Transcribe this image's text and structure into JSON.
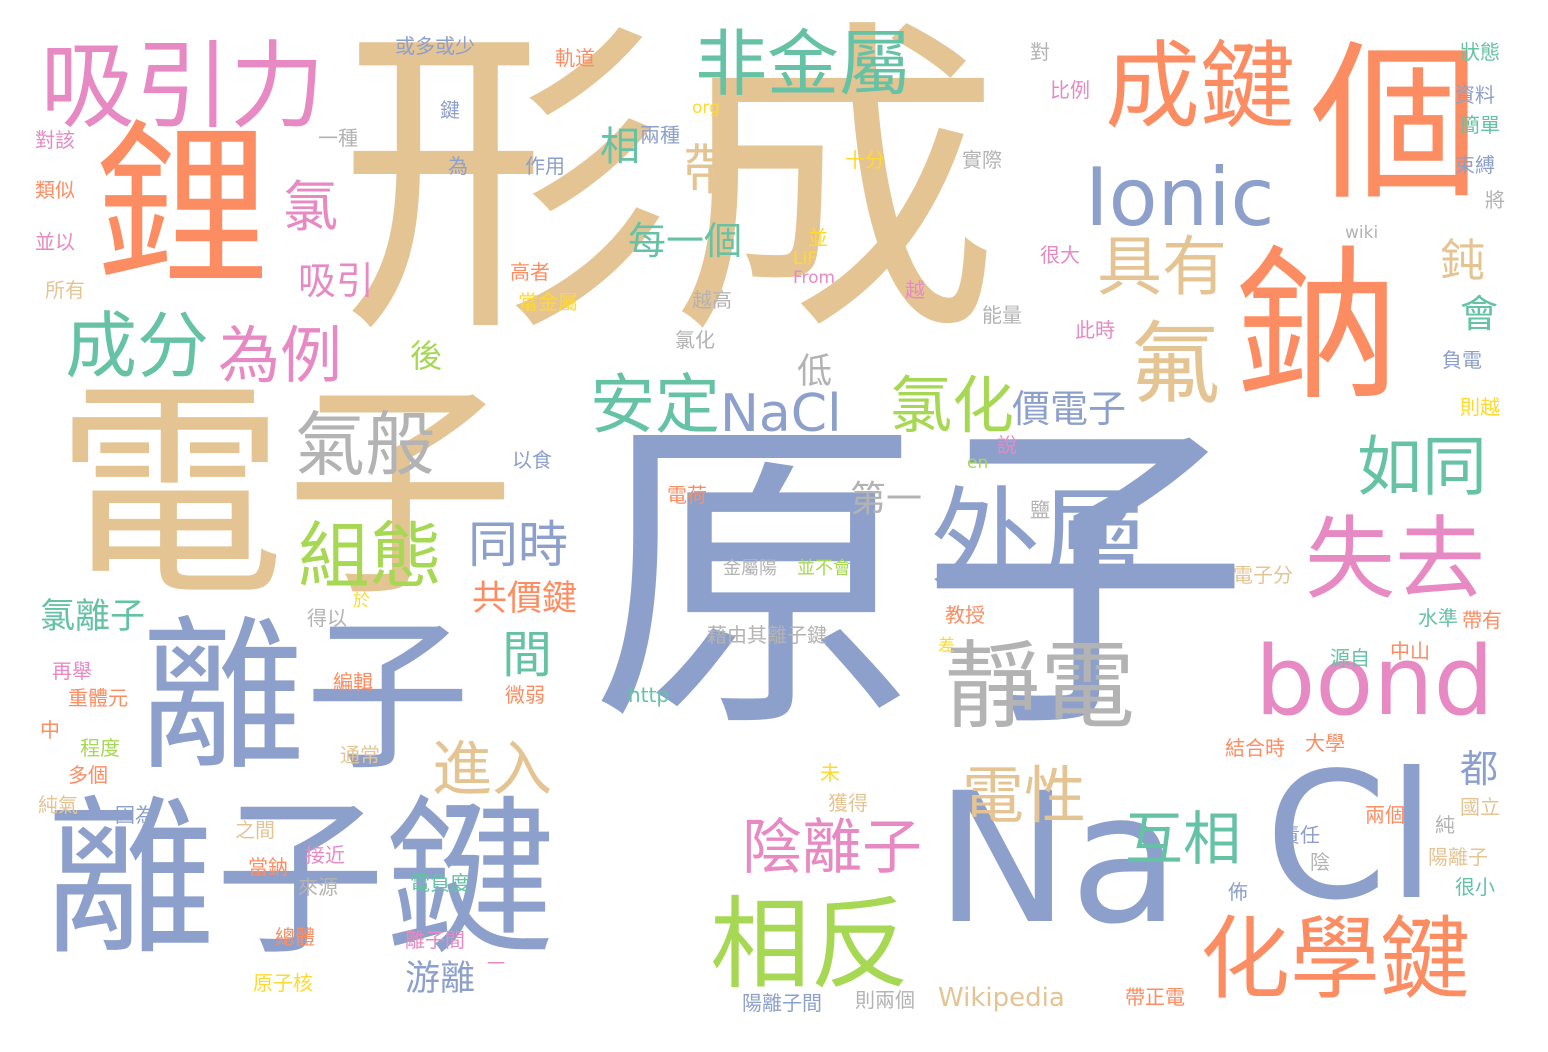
{
  "palette": {
    "green": "#66c2a5",
    "orange": "#fc8d62",
    "blue": "#8da0cb",
    "pink": "#e78ac3",
    "lime": "#a6d854",
    "yellow": "#ffd92f",
    "tan": "#e5c494",
    "gray": "#b3b3b3"
  },
  "words": [
    {
      "text": "原子",
      "color": "blue"
    },
    {
      "text": "形成",
      "color": "tan"
    },
    {
      "text": "電子",
      "color": "tan"
    },
    {
      "text": "離子鍵",
      "color": "blue"
    },
    {
      "text": "Na",
      "color": "blue"
    },
    {
      "text": "Cl",
      "color": "blue"
    },
    {
      "text": "離子",
      "color": "blue"
    },
    {
      "text": "鋰",
      "color": "orange"
    },
    {
      "text": "鈉",
      "color": "orange"
    },
    {
      "text": "個",
      "color": "orange"
    },
    {
      "text": "成鍵",
      "color": "orange"
    },
    {
      "text": "外層",
      "color": "blue"
    },
    {
      "text": "Ionic",
      "color": "blue"
    },
    {
      "text": "bond",
      "color": "pink"
    },
    {
      "text": "化學鍵",
      "color": "orange"
    },
    {
      "text": "失去",
      "color": "pink"
    },
    {
      "text": "相反",
      "color": "lime"
    },
    {
      "text": "靜電",
      "color": "gray"
    },
    {
      "text": "吸引力",
      "color": "pink"
    },
    {
      "text": "非金屬",
      "color": "green"
    },
    {
      "text": "氟",
      "color": "tan"
    },
    {
      "text": "NaCl",
      "color": "blue"
    },
    {
      "text": "安定",
      "color": "green"
    },
    {
      "text": "氯化",
      "color": "lime"
    },
    {
      "text": "成分",
      "color": "green"
    },
    {
      "text": "為例",
      "color": "pink"
    },
    {
      "text": "氣般",
      "color": "gray"
    },
    {
      "text": "組態",
      "color": "lime"
    },
    {
      "text": "具有",
      "color": "tan"
    },
    {
      "text": "帶",
      "color": "tan"
    },
    {
      "text": "氯",
      "color": "pink"
    },
    {
      "text": "陰離子",
      "color": "pink"
    },
    {
      "text": "互相",
      "color": "green"
    },
    {
      "text": "電性",
      "color": "tan"
    },
    {
      "text": "如同",
      "color": "green"
    },
    {
      "text": "同時",
      "color": "blue"
    },
    {
      "text": "進入",
      "color": "tan"
    },
    {
      "text": "間",
      "color": "green"
    },
    {
      "text": "每一個",
      "color": "green"
    },
    {
      "text": "鈍",
      "color": "tan"
    },
    {
      "text": "吸引",
      "color": "pink"
    },
    {
      "text": "相",
      "color": "green"
    },
    {
      "text": "價電子",
      "color": "blue"
    },
    {
      "text": "共價鍵",
      "color": "orange"
    },
    {
      "text": "氯離子",
      "color": "green"
    },
    {
      "text": "第一",
      "color": "gray"
    },
    {
      "text": "游離",
      "color": "blue"
    },
    {
      "text": "Wikipedia",
      "color": "tan"
    },
    {
      "text": "會",
      "color": "green"
    },
    {
      "text": "都",
      "color": "blue"
    },
    {
      "text": "低",
      "color": "gray"
    },
    {
      "text": "後",
      "color": "lime"
    },
    {
      "text": "或多或少",
      "color": "blue"
    },
    {
      "text": "軌道",
      "color": "orange"
    },
    {
      "text": "鍵",
      "color": "blue"
    },
    {
      "text": "一種",
      "color": "gray"
    },
    {
      "text": "為",
      "color": "blue"
    },
    {
      "text": "作用",
      "color": "blue"
    },
    {
      "text": "兩種",
      "color": "blue"
    },
    {
      "text": "org",
      "color": "yellow"
    },
    {
      "text": "比例",
      "color": "pink"
    },
    {
      "text": "對",
      "color": "gray"
    },
    {
      "text": "十分",
      "color": "yellow"
    },
    {
      "text": "實際",
      "color": "gray"
    },
    {
      "text": "wiki",
      "color": "gray"
    },
    {
      "text": "並",
      "color": "yellow"
    },
    {
      "text": "LiF",
      "color": "yellow"
    },
    {
      "text": "From",
      "color": "pink"
    },
    {
      "text": "高者",
      "color": "orange"
    },
    {
      "text": "當金屬",
      "color": "yellow"
    },
    {
      "text": "越高",
      "color": "gray"
    },
    {
      "text": "越",
      "color": "pink"
    },
    {
      "text": "很大",
      "color": "pink"
    },
    {
      "text": "能量",
      "color": "gray"
    },
    {
      "text": "此時",
      "color": "pink"
    },
    {
      "text": "氯化",
      "color": "gray"
    },
    {
      "text": "以食",
      "color": "blue"
    },
    {
      "text": "說",
      "color": "pink"
    },
    {
      "text": "en",
      "color": "lime"
    },
    {
      "text": "鹽",
      "color": "gray"
    },
    {
      "text": "電荷",
      "color": "orange"
    },
    {
      "text": "金屬陽",
      "color": "gray"
    },
    {
      "text": "並不會",
      "color": "lime"
    },
    {
      "text": "藉由其離子鍵",
      "color": "gray"
    },
    {
      "text": "電子分",
      "color": "tan"
    },
    {
      "text": "教授",
      "color": "orange"
    },
    {
      "text": "差",
      "color": "yellow"
    },
    {
      "text": "於",
      "color": "yellow"
    },
    {
      "text": "得以",
      "color": "gray"
    },
    {
      "text": "狀態",
      "color": "green"
    },
    {
      "text": "資料",
      "color": "blue"
    },
    {
      "text": "簡單",
      "color": "green"
    },
    {
      "text": "束縛",
      "color": "blue"
    },
    {
      "text": "將",
      "color": "gray"
    },
    {
      "text": "負電",
      "color": "blue"
    },
    {
      "text": "則越",
      "color": "yellow"
    },
    {
      "text": "帶有",
      "color": "orange"
    },
    {
      "text": "水準",
      "color": "green"
    },
    {
      "text": "中山",
      "color": "orange"
    },
    {
      "text": "源自",
      "color": "green"
    },
    {
      "text": "大學",
      "color": "orange"
    },
    {
      "text": "結合時",
      "color": "orange"
    },
    {
      "text": "國立",
      "color": "tan"
    },
    {
      "text": "兩個",
      "color": "orange"
    },
    {
      "text": "純",
      "color": "gray"
    },
    {
      "text": "責任",
      "color": "blue"
    },
    {
      "text": "陰",
      "color": "gray"
    },
    {
      "text": "陽離子",
      "color": "tan"
    },
    {
      "text": "很小",
      "color": "green"
    },
    {
      "text": "佈",
      "color": "blue"
    },
    {
      "text": "帶正電",
      "color": "orange"
    },
    {
      "text": "則兩個",
      "color": "gray"
    },
    {
      "text": "陽離子間",
      "color": "blue"
    },
    {
      "text": "離子間",
      "color": "pink"
    },
    {
      "text": "電負度",
      "color": "green"
    },
    {
      "text": "原子核",
      "color": "yellow"
    },
    {
      "text": "總體",
      "color": "orange"
    },
    {
      "text": "來源",
      "color": "gray"
    },
    {
      "text": "接近",
      "color": "pink"
    },
    {
      "text": "當鈉",
      "color": "orange"
    },
    {
      "text": "之間",
      "color": "tan"
    },
    {
      "text": "因為",
      "color": "blue"
    },
    {
      "text": "純氣",
      "color": "tan"
    },
    {
      "text": "多個",
      "color": "orange"
    },
    {
      "text": "程度",
      "color": "lime"
    },
    {
      "text": "中",
      "color": "orange"
    },
    {
      "text": "重體元",
      "color": "orange"
    },
    {
      "text": "再舉",
      "color": "pink"
    },
    {
      "text": "編輯",
      "color": "orange"
    },
    {
      "text": "微弱",
      "color": "orange"
    },
    {
      "text": "http",
      "color": "green"
    },
    {
      "text": "通常",
      "color": "tan"
    },
    {
      "text": "兩",
      "color": "blue"
    },
    {
      "text": "未",
      "color": "yellow"
    },
    {
      "text": "獲得",
      "color": "tan"
    },
    {
      "text": "對該",
      "color": "pink"
    },
    {
      "text": "類似",
      "color": "orange"
    },
    {
      "text": "並以",
      "color": "pink"
    },
    {
      "text": "所有",
      "color": "tan"
    },
    {
      "text": "一",
      "color": "pink"
    }
  ]
}
